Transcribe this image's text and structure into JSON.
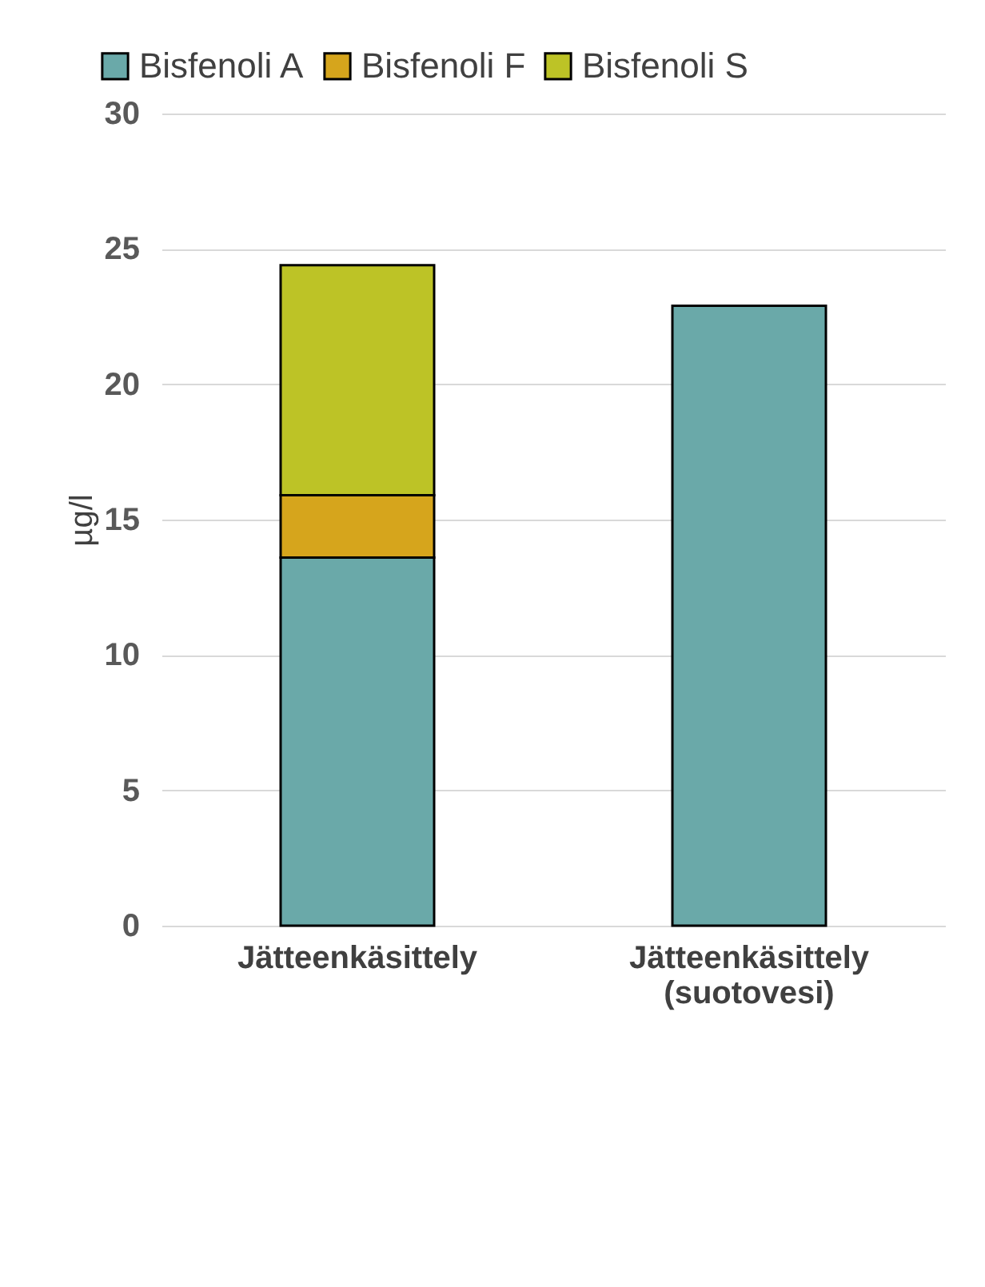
{
  "chart_data": {
    "type": "bar",
    "stacked": true,
    "ylabel": "µg/l",
    "categories": [
      "Jätteenkäsittely",
      "Jätteenkäsittely (suotovesi)"
    ],
    "series": [
      {
        "name": "Bisfenoli A",
        "color": "#6aa9a9",
        "values": [
          13.6,
          22.9
        ]
      },
      {
        "name": "Bisfenoli F",
        "color": "#d6a51c",
        "values": [
          2.3,
          null
        ]
      },
      {
        "name": "Bisfenoli S",
        "color": "#bdc326",
        "values": [
          8.5,
          null
        ]
      }
    ],
    "ylim": [
      0,
      30
    ],
    "yticks": [
      0,
      5,
      10,
      15,
      20,
      25,
      30
    ],
    "grid": "y",
    "legend": "top"
  }
}
